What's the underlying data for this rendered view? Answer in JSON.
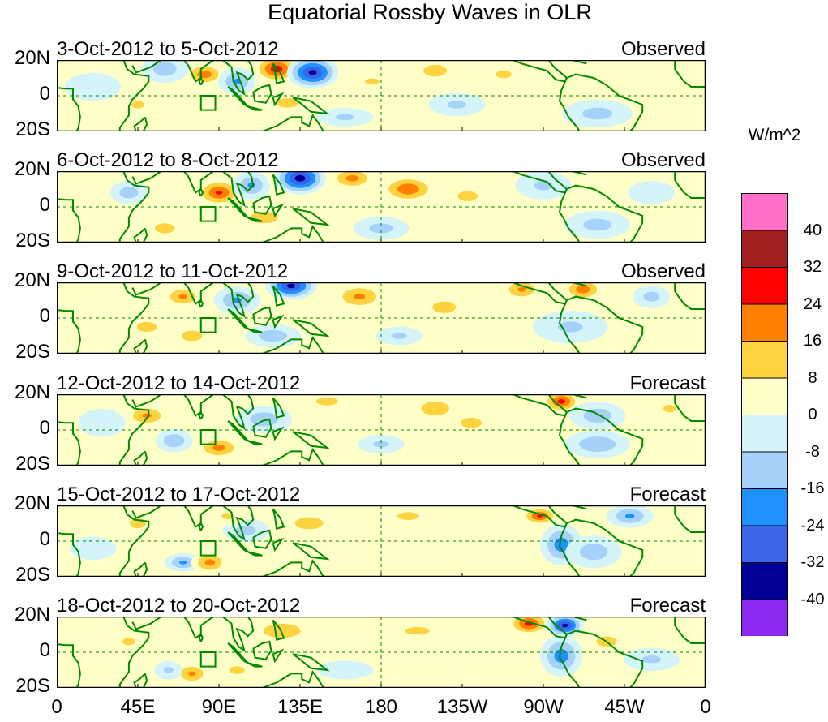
{
  "title": "Equatorial Rossby Waves in OLR",
  "lat_labels": [
    "20N",
    "0",
    "20S"
  ],
  "lon_labels": [
    "0",
    "45E",
    "90E",
    "135E",
    "180",
    "135W",
    "90W",
    "45W",
    "0"
  ],
  "units": "W/m^2",
  "colorbar": {
    "levels": [
      "40",
      "32",
      "24",
      "16",
      "8",
      "0",
      "-8",
      "-16",
      "-24",
      "-32",
      "-40"
    ],
    "colors": [
      "#ff6ec7",
      "#a41f1f",
      "#ff0000",
      "#ff7f00",
      "#ffd23f",
      "#ffffc8",
      "#d4f4fa",
      "#a6d2fa",
      "#1e90ff",
      "#3c64e6",
      "#000096",
      "#8c28f0"
    ]
  },
  "land_color": "#008a00",
  "panels": [
    {
      "period": "3-Oct-2012 to 5-Oct-2012",
      "status": "Observed",
      "anomalies": [
        {
          "lon": 82,
          "lat": 12,
          "rlon": 9,
          "rlat": 5,
          "v": 22
        },
        {
          "lon": 122,
          "lat": 15,
          "rlon": 10,
          "rlat": 6,
          "v": 30
        },
        {
          "lon": 142,
          "lat": 13,
          "rlon": 11,
          "rlat": 7,
          "v": -36
        },
        {
          "lon": 100,
          "lat": 8,
          "rlon": 8,
          "rlat": 6,
          "v": -18
        },
        {
          "lon": 60,
          "lat": 15,
          "rlon": 10,
          "rlat": 6,
          "v": -14
        },
        {
          "lon": 128,
          "lat": -4,
          "rlon": 10,
          "rlat": 4,
          "v": 14
        },
        {
          "lon": 175,
          "lat": 8,
          "rlon": 9,
          "rlat": 4,
          "v": 10
        },
        {
          "lon": 210,
          "lat": 14,
          "rlon": 10,
          "rlat": 5,
          "v": 14
        },
        {
          "lon": 248,
          "lat": 12,
          "rlon": 10,
          "rlat": 5,
          "v": 10
        },
        {
          "lon": 222,
          "lat": -5,
          "rlon": 12,
          "rlat": 5,
          "v": -10
        },
        {
          "lon": 300,
          "lat": -10,
          "rlon": 15,
          "rlat": 6,
          "v": -12
        },
        {
          "lon": 330,
          "lat": 15,
          "rlon": 10,
          "rlat": 5,
          "v": 8
        },
        {
          "lon": 20,
          "lat": 5,
          "rlon": 12,
          "rlat": 6,
          "v": -8
        },
        {
          "lon": 45,
          "lat": -5,
          "rlon": 8,
          "rlat": 5,
          "v": 10
        },
        {
          "lon": 160,
          "lat": -12,
          "rlon": 12,
          "rlat": 4,
          "v": -10
        }
      ]
    },
    {
      "period": "6-Oct-2012 to 8-Oct-2012",
      "status": "Observed",
      "anomalies": [
        {
          "lon": 90,
          "lat": 8,
          "rlon": 10,
          "rlat": 6,
          "v": 26
        },
        {
          "lon": 135,
          "lat": 16,
          "rlon": 11,
          "rlat": 7,
          "v": -38
        },
        {
          "lon": 108,
          "lat": 12,
          "rlon": 8,
          "rlat": 6,
          "v": -18
        },
        {
          "lon": 164,
          "lat": 16,
          "rlon": 10,
          "rlat": 5,
          "v": 20
        },
        {
          "lon": 195,
          "lat": 10,
          "rlon": 12,
          "rlat": 6,
          "v": 24
        },
        {
          "lon": 228,
          "lat": 6,
          "rlon": 10,
          "rlat": 5,
          "v": 12
        },
        {
          "lon": 40,
          "lat": 8,
          "rlon": 8,
          "rlat": 5,
          "v": -14
        },
        {
          "lon": 60,
          "lat": -12,
          "rlon": 10,
          "rlat": 5,
          "v": 12
        },
        {
          "lon": 115,
          "lat": -6,
          "rlon": 12,
          "rlat": 5,
          "v": 14
        },
        {
          "lon": 180,
          "lat": -12,
          "rlon": 12,
          "rlat": 5,
          "v": -12
        },
        {
          "lon": 270,
          "lat": 12,
          "rlon": 12,
          "rlat": 6,
          "v": -10
        },
        {
          "lon": 300,
          "lat": -10,
          "rlon": 14,
          "rlat": 6,
          "v": -12
        },
        {
          "lon": 330,
          "lat": 8,
          "rlon": 10,
          "rlat": 5,
          "v": -8
        },
        {
          "lon": 210,
          "lat": -10,
          "rlon": 10,
          "rlat": 4,
          "v": 8
        }
      ]
    },
    {
      "period": "9-Oct-2012 to 11-Oct-2012",
      "status": "Observed",
      "anomalies": [
        {
          "lon": 70,
          "lat": 12,
          "rlon": 9,
          "rlat": 5,
          "v": 18
        },
        {
          "lon": 130,
          "lat": 18,
          "rlon": 11,
          "rlat": 6,
          "v": -36
        },
        {
          "lon": 100,
          "lat": 10,
          "rlon": 10,
          "rlat": 6,
          "v": -18
        },
        {
          "lon": 168,
          "lat": 12,
          "rlon": 12,
          "rlat": 6,
          "v": 18
        },
        {
          "lon": 215,
          "lat": 6,
          "rlon": 10,
          "rlat": 5,
          "v": 14
        },
        {
          "lon": 258,
          "lat": 16,
          "rlon": 9,
          "rlat": 5,
          "v": 18
        },
        {
          "lon": 292,
          "lat": 16,
          "rlon": 9,
          "rlat": 5,
          "v": 22
        },
        {
          "lon": 330,
          "lat": 12,
          "rlon": 8,
          "rlat": 5,
          "v": -12
        },
        {
          "lon": 50,
          "lat": -5,
          "rlon": 10,
          "rlat": 5,
          "v": 12
        },
        {
          "lon": 75,
          "lat": -10,
          "rlon": 8,
          "rlat": 4,
          "v": 16
        },
        {
          "lon": 120,
          "lat": -10,
          "rlon": 12,
          "rlat": 5,
          "v": -14
        },
        {
          "lon": 190,
          "lat": -10,
          "rlon": 10,
          "rlat": 4,
          "v": -10
        },
        {
          "lon": 285,
          "lat": -5,
          "rlon": 16,
          "rlat": 7,
          "v": -10
        },
        {
          "lon": 30,
          "lat": 15,
          "rlon": 10,
          "rlat": 5,
          "v": 8
        }
      ]
    },
    {
      "period": "12-Oct-2012 to 14-Oct-2012",
      "status": "Forecast",
      "anomalies": [
        {
          "lon": 50,
          "lat": 8,
          "rlon": 10,
          "rlat": 5,
          "v": 18
        },
        {
          "lon": 90,
          "lat": -10,
          "rlon": 10,
          "rlat": 5,
          "v": 20
        },
        {
          "lon": 65,
          "lat": -6,
          "rlon": 8,
          "rlat": 5,
          "v": -16
        },
        {
          "lon": 115,
          "lat": 6,
          "rlon": 12,
          "rlat": 6,
          "v": -14
        },
        {
          "lon": 150,
          "lat": 16,
          "rlon": 14,
          "rlat": 5,
          "v": 10
        },
        {
          "lon": 210,
          "lat": 12,
          "rlon": 12,
          "rlat": 6,
          "v": 14
        },
        {
          "lon": 230,
          "lat": 4,
          "rlon": 8,
          "rlat": 4,
          "v": 16
        },
        {
          "lon": 280,
          "lat": 16,
          "rlon": 8,
          "rlat": 5,
          "v": 28
        },
        {
          "lon": 300,
          "lat": 8,
          "rlon": 12,
          "rlat": 6,
          "v": -14
        },
        {
          "lon": 300,
          "lat": -8,
          "rlon": 14,
          "rlat": 6,
          "v": -16
        },
        {
          "lon": 340,
          "lat": 12,
          "rlon": 8,
          "rlat": 5,
          "v": 10
        },
        {
          "lon": 180,
          "lat": -8,
          "rlon": 10,
          "rlat": 4,
          "v": -10
        },
        {
          "lon": 25,
          "lat": 4,
          "rlon": 10,
          "rlat": 6,
          "v": -8
        },
        {
          "lon": 140,
          "lat": -10,
          "rlon": 10,
          "rlat": 4,
          "v": 8
        }
      ]
    },
    {
      "period": "15-Oct-2012 to 17-Oct-2012",
      "status": "Forecast",
      "anomalies": [
        {
          "lon": 45,
          "lat": 10,
          "rlon": 8,
          "rlat": 5,
          "v": 12
        },
        {
          "lon": 70,
          "lat": -12,
          "rlon": 8,
          "rlat": 4,
          "v": -18
        },
        {
          "lon": 85,
          "lat": -12,
          "rlon": 8,
          "rlat": 5,
          "v": 20
        },
        {
          "lon": 105,
          "lat": 6,
          "rlon": 10,
          "rlat": 5,
          "v": -12
        },
        {
          "lon": 95,
          "lat": 14,
          "rlon": 8,
          "rlat": 4,
          "v": 10
        },
        {
          "lon": 140,
          "lat": 10,
          "rlon": 14,
          "rlat": 6,
          "v": 12
        },
        {
          "lon": 195,
          "lat": 14,
          "rlon": 14,
          "rlat": 5,
          "v": 10
        },
        {
          "lon": 268,
          "lat": 14,
          "rlon": 8,
          "rlat": 4,
          "v": 26
        },
        {
          "lon": 280,
          "lat": -2,
          "rlon": 9,
          "rlat": 9,
          "v": -22
        },
        {
          "lon": 298,
          "lat": -6,
          "rlon": 12,
          "rlat": 7,
          "v": -14
        },
        {
          "lon": 318,
          "lat": 14,
          "rlon": 10,
          "rlat": 5,
          "v": -18
        },
        {
          "lon": 335,
          "lat": -8,
          "rlon": 10,
          "rlat": 5,
          "v": 8
        },
        {
          "lon": 20,
          "lat": -4,
          "rlon": 10,
          "rlat": 5,
          "v": -8
        }
      ]
    },
    {
      "period": "18-Oct-2012 to 20-Oct-2012",
      "status": "Forecast",
      "anomalies": [
        {
          "lon": 40,
          "lat": 6,
          "rlon": 8,
          "rlat": 5,
          "v": 10
        },
        {
          "lon": 75,
          "lat": -12,
          "rlon": 8,
          "rlat": 5,
          "v": 18
        },
        {
          "lon": 62,
          "lat": -10,
          "rlon": 6,
          "rlat": 4,
          "v": -10
        },
        {
          "lon": 125,
          "lat": 12,
          "rlon": 16,
          "rlat": 6,
          "v": 14
        },
        {
          "lon": 200,
          "lat": 12,
          "rlon": 16,
          "rlat": 5,
          "v": 10
        },
        {
          "lon": 262,
          "lat": 16,
          "rlon": 9,
          "rlat": 5,
          "v": 28
        },
        {
          "lon": 282,
          "lat": 15,
          "rlon": 8,
          "rlat": 5,
          "v": -36
        },
        {
          "lon": 280,
          "lat": -2,
          "rlon": 9,
          "rlat": 9,
          "v": -22
        },
        {
          "lon": 305,
          "lat": 6,
          "rlon": 10,
          "rlat": 5,
          "v": 12
        },
        {
          "lon": 330,
          "lat": -4,
          "rlon": 12,
          "rlat": 5,
          "v": -10
        },
        {
          "lon": 100,
          "lat": -10,
          "rlon": 10,
          "rlat": 5,
          "v": 10
        },
        {
          "lon": 160,
          "lat": -10,
          "rlon": 12,
          "rlat": 4,
          "v": -8
        }
      ]
    }
  ]
}
